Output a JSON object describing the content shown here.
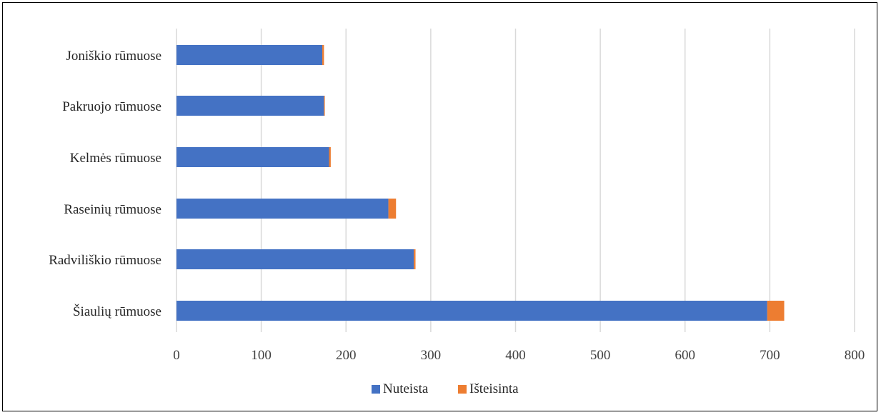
{
  "chart_data": {
    "type": "bar",
    "orientation": "horizontal",
    "stacked": true,
    "categories": [
      "Joniškio rūmuose",
      "Pakruojo rūmuose",
      "Kelmės rūmuose",
      "Raseinių rūmuose",
      "Radviliškio rūmuose",
      "Šiaulių rūmuose"
    ],
    "series": [
      {
        "name": "Nuteista",
        "color": "#4472C4",
        "values": [
          172,
          174,
          180,
          250,
          280,
          697
        ]
      },
      {
        "name": "Išteisinta",
        "color": "#ED7D31",
        "values": [
          2,
          1,
          2,
          9,
          2,
          20
        ]
      }
    ],
    "xlim": [
      0,
      800
    ],
    "xticks": [
      0,
      100,
      200,
      300,
      400,
      500,
      600,
      700,
      800
    ],
    "grid": true,
    "legend_position": "bottom",
    "title": "",
    "xlabel": "",
    "ylabel": ""
  }
}
